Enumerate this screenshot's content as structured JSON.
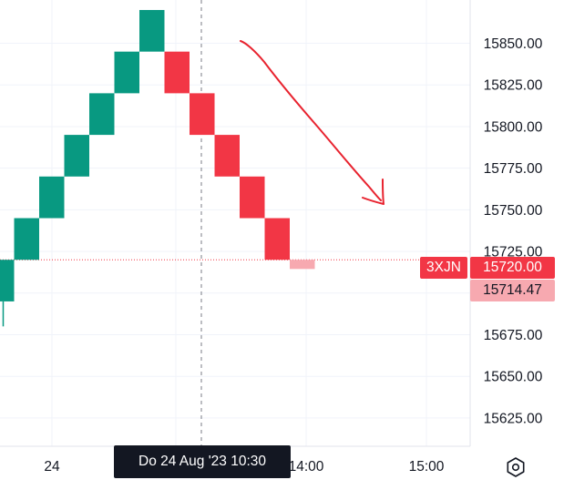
{
  "chart_data": {
    "type": "renko",
    "box_size": 25,
    "ylim": [
      15608,
      15876
    ],
    "y_ticks": [
      15625,
      15650,
      15675,
      15700,
      15725,
      15750,
      15775,
      15800,
      15825,
      15850
    ],
    "y_tick_labels": [
      "15625.00",
      "15650.00",
      "15675.00",
      "15700.00",
      "15725.00",
      "15750.00",
      "15775.00",
      "15800.00",
      "15825.00",
      "15850.00"
    ],
    "x_tick_labels": [
      "24",
      "14:00",
      "15:00"
    ],
    "bricks": [
      {
        "open": 15695,
        "close": 15720,
        "direction": "up"
      },
      {
        "open": 15720,
        "close": 15745,
        "direction": "up"
      },
      {
        "open": 15745,
        "close": 15770,
        "direction": "up"
      },
      {
        "open": 15770,
        "close": 15795,
        "direction": "up"
      },
      {
        "open": 15795,
        "close": 15820,
        "direction": "up"
      },
      {
        "open": 15820,
        "close": 15845,
        "direction": "up"
      },
      {
        "open": 15845,
        "close": 15870,
        "direction": "up"
      },
      {
        "open": 15845,
        "close": 15820,
        "direction": "down"
      },
      {
        "open": 15820,
        "close": 15795,
        "direction": "down"
      },
      {
        "open": 15795,
        "close": 15770,
        "direction": "down"
      },
      {
        "open": 15770,
        "close": 15745,
        "direction": "down"
      },
      {
        "open": 15745,
        "close": 15720,
        "direction": "down"
      },
      {
        "open": 15720,
        "close": 15714.47,
        "direction": "down",
        "pending": true
      }
    ],
    "wick_low": 15680,
    "last_price": 15720.0,
    "last_price_label": "15720.00",
    "ghost_price_label": "15714.47",
    "symbol": "3XJN",
    "crosshair_time_label": "Do 24 Aug '23   10:30",
    "grid": true,
    "colors": {
      "up": "#089981",
      "down": "#f23645",
      "pending": "#f7a9b0",
      "grid": "#f0f3fa",
      "price_line": "#f23645",
      "annotation": "#e8232f"
    }
  },
  "icons": {
    "settings": "settings-hexagon-icon"
  }
}
